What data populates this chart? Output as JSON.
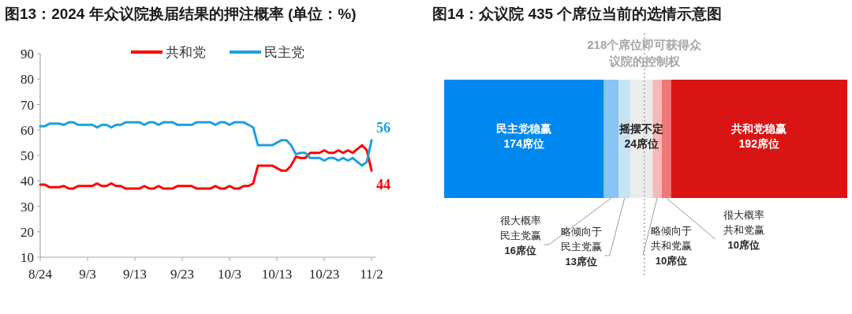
{
  "chart_data": [
    {
      "type": "line",
      "title": "图13：2024 年众议院换届结果的押注概率 (单位：%)",
      "legend": "top",
      "grid": false,
      "marker": "none",
      "line_style": "solid",
      "x": [
        "--08-24",
        "--08-25",
        "--08-26",
        "--08-27",
        "--08-28",
        "--08-29",
        "--08-30",
        "--08-31",
        "--09-01",
        "--09-02",
        "--09-03",
        "--09-04",
        "--09-05",
        "--09-06",
        "--09-07",
        "--09-08",
        "--09-09",
        "--09-10",
        "--09-11",
        "--09-12",
        "--09-13",
        "--09-14",
        "--09-15",
        "--09-16",
        "--09-17",
        "--09-18",
        "--09-19",
        "--09-20",
        "--09-21",
        "--09-22",
        "--09-23",
        "--09-24",
        "--09-25",
        "--09-26",
        "--09-27",
        "--09-28",
        "--09-29",
        "--09-30",
        "--10-01",
        "--10-02",
        "--10-03",
        "--10-04",
        "--10-05",
        "--10-06",
        "--10-07",
        "--10-08",
        "--10-09",
        "--10-10",
        "--10-11",
        "--10-12",
        "--10-13",
        "--10-14",
        "--10-15",
        "--10-16",
        "--10-17",
        "--10-18",
        "--10-19",
        "--10-20",
        "--10-21",
        "--10-22",
        "--10-23",
        "--10-24",
        "--10-25",
        "--10-26",
        "--10-27",
        "--10-28",
        "--10-29",
        "--10-30",
        "--10-31",
        "--11-01",
        "--11-02"
      ],
      "xlim": [
        "--08-24",
        "--11-03"
      ],
      "xticks": [
        {
          "value": "--08-24",
          "label": "8/24"
        },
        {
          "value": "--09-03",
          "label": "9/3"
        },
        {
          "value": "--09-13",
          "label": "9/13"
        },
        {
          "value": "--09-23",
          "label": "9/23"
        },
        {
          "value": "--10-03",
          "label": "10/3"
        },
        {
          "value": "--10-13",
          "label": "10/13"
        },
        {
          "value": "--10-23",
          "label": "10/23"
        },
        {
          "value": "--11-02",
          "label": "11/2"
        }
      ],
      "ylim": [
        10,
        90
      ],
      "yticks": [
        10,
        20,
        30,
        40,
        50,
        60,
        70,
        80,
        90
      ],
      "series": [
        {
          "name": "共和党",
          "color": "#ff0000",
          "values": [
            38.5,
            38.5,
            37.5,
            37.5,
            37.5,
            38,
            37,
            37,
            38,
            38,
            38,
            38,
            39,
            38,
            38,
            39,
            38,
            38,
            37,
            37,
            37,
            37,
            38,
            37,
            37,
            38,
            37,
            37,
            37,
            38,
            38,
            38,
            38,
            37,
            37,
            37,
            37,
            38,
            37,
            37,
            38,
            37,
            37,
            38,
            38,
            39,
            46,
            46,
            46,
            46,
            45,
            44,
            44,
            46,
            49.5,
            49,
            49,
            51,
            51,
            51,
            52,
            51,
            51,
            52,
            51,
            52,
            51,
            52.5,
            54,
            52,
            44
          ],
          "value_labels": [
            null,
            null,
            null,
            null,
            null,
            null,
            null,
            null,
            null,
            null,
            null,
            null,
            null,
            null,
            null,
            null,
            null,
            null,
            null,
            null,
            null,
            null,
            null,
            null,
            null,
            null,
            null,
            null,
            null,
            null,
            null,
            null,
            null,
            null,
            null,
            null,
            null,
            null,
            null,
            null,
            null,
            null,
            null,
            null,
            null,
            null,
            null,
            null,
            null,
            null,
            null,
            null,
            null,
            null,
            null,
            null,
            null,
            null,
            null,
            null,
            null,
            null,
            null,
            null,
            null,
            null,
            null,
            null,
            null,
            null,
            "44"
          ]
        },
        {
          "name": "民主党",
          "color": "#1ca0dc",
          "values": [
            61.5,
            61.5,
            62.5,
            62.5,
            62.5,
            62,
            63,
            63,
            62,
            62,
            62,
            62,
            61,
            62,
            62,
            61,
            62,
            62,
            63,
            63,
            63,
            63,
            62,
            63,
            63,
            62,
            63,
            63,
            63,
            62,
            62,
            62,
            62,
            63,
            63,
            63,
            63,
            62,
            63,
            63,
            62,
            63,
            63,
            63,
            62,
            61,
            54,
            54,
            54,
            54,
            55,
            56,
            56,
            54,
            50.5,
            51,
            51,
            49,
            49,
            49,
            48,
            49,
            49,
            48,
            49,
            48,
            49,
            47.5,
            46,
            47.5,
            56
          ],
          "value_labels": [
            null,
            null,
            null,
            null,
            null,
            null,
            null,
            null,
            null,
            null,
            null,
            null,
            null,
            null,
            null,
            null,
            null,
            null,
            null,
            null,
            null,
            null,
            null,
            null,
            null,
            null,
            null,
            null,
            null,
            null,
            null,
            null,
            null,
            null,
            null,
            null,
            null,
            null,
            null,
            null,
            null,
            null,
            null,
            null,
            null,
            null,
            null,
            null,
            null,
            null,
            null,
            null,
            null,
            null,
            null,
            null,
            null,
            null,
            null,
            null,
            null,
            null,
            null,
            null,
            null,
            null,
            null,
            null,
            null,
            null,
            "56"
          ]
        }
      ]
    },
    {
      "type": "bar",
      "title": "图14：众议院 435 个席位当前的选情示意图",
      "orientation": "horizontal",
      "stacked": true,
      "tick_labels": false,
      "categories": [
        null
      ],
      "series": [
        {
          "name": "民主党稳赢",
          "color": "#0088f0",
          "values": [
            174
          ],
          "value_labels": [
            "174席位"
          ]
        },
        {
          "name": "很大概率民主党赢",
          "color": "#88c4f4",
          "values": [
            16
          ],
          "value_labels": [
            "16席位"
          ]
        },
        {
          "name": "略倾向于民主党赢",
          "color": "#c4e4f4",
          "values": [
            13
          ],
          "value_labels": [
            "13席位"
          ]
        },
        {
          "name": "摇摆不定",
          "color": "#ececec",
          "values": [
            24
          ],
          "value_labels": [
            "24席位"
          ]
        },
        {
          "name": "略倾向于共和党赢",
          "color": "#f8b8b8",
          "values": [
            10
          ],
          "value_labels": [
            "10席位"
          ]
        },
        {
          "name": "很大概率共和党赢",
          "color": "#ee7878",
          "values": [
            10
          ],
          "value_labels": [
            "10席位"
          ]
        },
        {
          "name": "共和党稳赢",
          "color": "#d81414",
          "values": [
            192
          ],
          "value_labels": [
            "192席位"
          ]
        }
      ],
      "ref_lines": [
        {
          "axis": "x",
          "value": 218,
          "label": "218个席位即可获得众议院的控制权",
          "color": "#a6a6a6",
          "line_style": "dotted"
        }
      ]
    }
  ]
}
